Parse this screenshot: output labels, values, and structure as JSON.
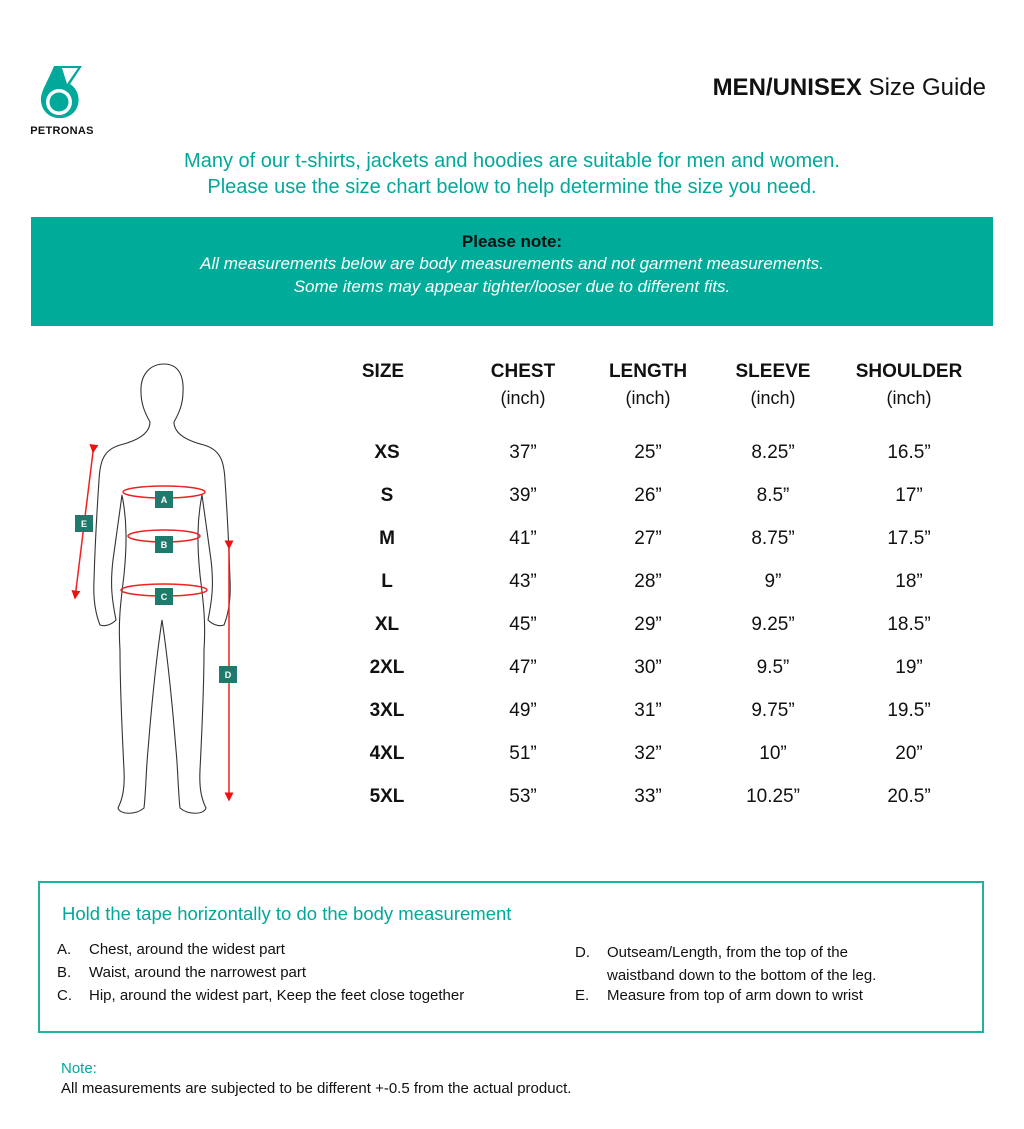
{
  "brand": {
    "logo_text": "PETRONAS",
    "brand_color": "#00a99a"
  },
  "title": {
    "bold": "MEN/UNISEX",
    "regular": "Size Guide"
  },
  "intro": [
    "Many of our t-shirts, jackets and hoodies are suitable for men and women.",
    "Please use the size chart below to help determine the size you need."
  ],
  "note_band": {
    "heading": "Please note:",
    "lines": [
      "All measurements below are body measurements and not garment measurements.",
      "Some items may appear tighter/looser due to different fits."
    ]
  },
  "figure": {
    "labels": [
      "A",
      "B",
      "C",
      "D",
      "E"
    ]
  },
  "table": {
    "headers": [
      {
        "label": "SIZE",
        "unit": ""
      },
      {
        "label": "CHEST",
        "unit": "(inch)"
      },
      {
        "label": "LENGTH",
        "unit": "(inch)"
      },
      {
        "label": "SLEEVE",
        "unit": "(inch)"
      },
      {
        "label": "SHOULDER",
        "unit": "(inch)"
      }
    ],
    "rows": [
      [
        "XS",
        "37”",
        "25”",
        "8.25”",
        "16.5”"
      ],
      [
        "S",
        "39”",
        "26”",
        "8.5”",
        "17”"
      ],
      [
        "M",
        "41”",
        "27”",
        "8.75”",
        "17.5”"
      ],
      [
        "L",
        "43”",
        "28”",
        "9”",
        "18”"
      ],
      [
        "XL",
        "45”",
        "29”",
        "9.25”",
        "18.5”"
      ],
      [
        "2XL",
        "47”",
        "30”",
        "9.5”",
        "19”"
      ],
      [
        "3XL",
        "49”",
        "31”",
        "9.75”",
        "19.5”"
      ],
      [
        "4XL",
        "51”",
        "32”",
        "10”",
        "20”"
      ],
      [
        "5XL",
        "53”",
        "33”",
        "10.25”",
        "20.5”"
      ]
    ]
  },
  "howto": {
    "title": "Hold the tape horizontally to do the body measurement",
    "items": [
      {
        "key": "A.",
        "text": "Chest, around the widest part"
      },
      {
        "key": "B.",
        "text": "Waist, around the narrowest part"
      },
      {
        "key": "C.",
        "text": "Hip, around the widest part, Keep the feet close together"
      },
      {
        "key": "D.",
        "text": "Outseam/Length, from the top of the",
        "text2": "waistband down to the bottom of the leg."
      },
      {
        "key": "E.",
        "text": "Measure from top of arm down to wrist"
      }
    ]
  },
  "footer": {
    "label": "Note:",
    "text": "All measurements are subjected to be different +-0.5 from the actual product."
  }
}
